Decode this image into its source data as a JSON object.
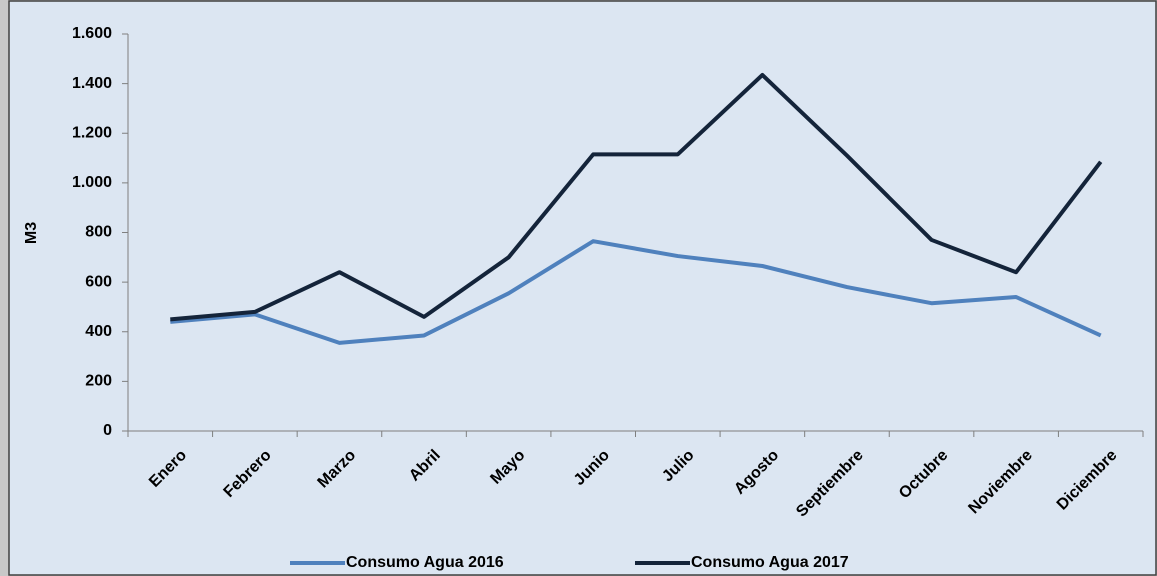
{
  "chart_data": {
    "type": "line",
    "y_label": "M3",
    "categories": [
      "Enero",
      "Febrero",
      "Marzo",
      "Abril",
      "Mayo",
      "Junio",
      "Julio",
      "Agosto",
      "Septiembre",
      "Octubre",
      "Noviembre",
      "Diciembre"
    ],
    "series": [
      {
        "name": "Consumo Agua 2016",
        "color": "#4f81bd",
        "values": [
          440,
          470,
          355,
          385,
          555,
          765,
          705,
          665,
          580,
          515,
          540,
          385
        ]
      },
      {
        "name": "Consumo Agua 2017",
        "color": "#14243a",
        "values": [
          450,
          480,
          640,
          460,
          700,
          1115,
          1115,
          1435,
          1110,
          770,
          640,
          1085
        ]
      }
    ],
    "ylim": [
      0,
      1600
    ],
    "yticks": [
      0,
      200,
      400,
      600,
      800,
      {
        "value": 1000,
        "label": "1.000"
      },
      {
        "value": 1200,
        "label": "1.200"
      },
      {
        "value": 1400,
        "label": "1.400"
      },
      {
        "value": 1600,
        "label": "1.600"
      }
    ],
    "grid": false,
    "legend": "bottom"
  }
}
